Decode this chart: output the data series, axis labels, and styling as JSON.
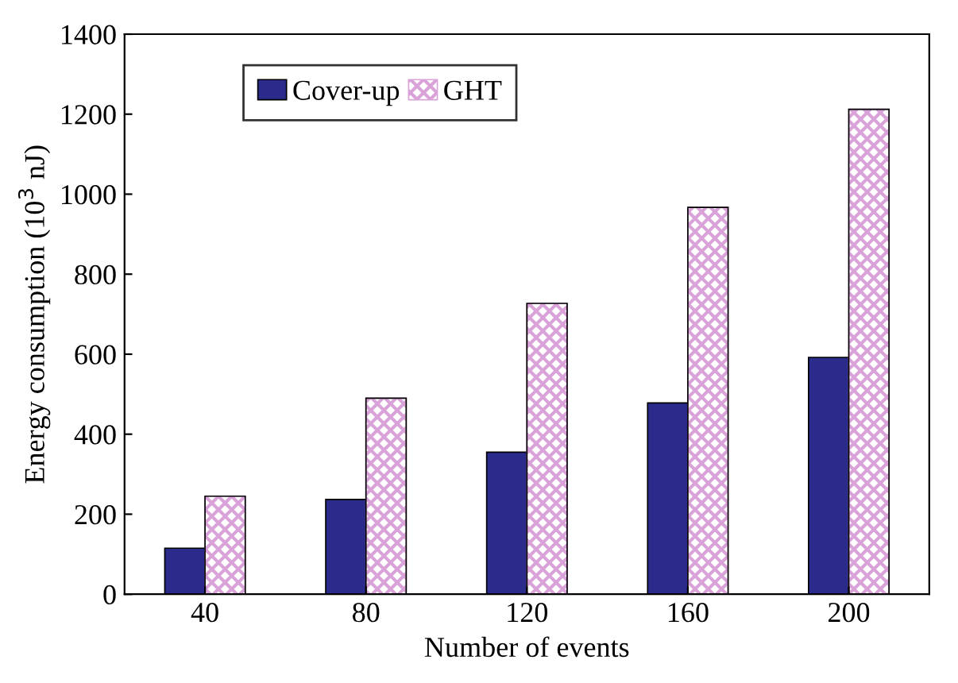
{
  "chart_data": {
    "type": "bar",
    "xlabel": "Number of events",
    "ylabel": "Energy consumption (10$^{3}$ nJ)",
    "categories": [
      "40",
      "80",
      "120",
      "160",
      "200"
    ],
    "series": [
      {
        "name": "Cover-up",
        "color": "#2b2b8c",
        "values": [
          115,
          237,
          355,
          478,
          592
        ]
      },
      {
        "name": "GHT",
        "color": "#d9a3d9",
        "values": [
          245,
          490,
          727,
          967,
          1212
        ]
      }
    ],
    "ylim": [
      0,
      1400
    ],
    "yticks": [
      0,
      200,
      400,
      600,
      800,
      1000,
      1200,
      1400
    ],
    "grid": false,
    "legend": "top left"
  }
}
